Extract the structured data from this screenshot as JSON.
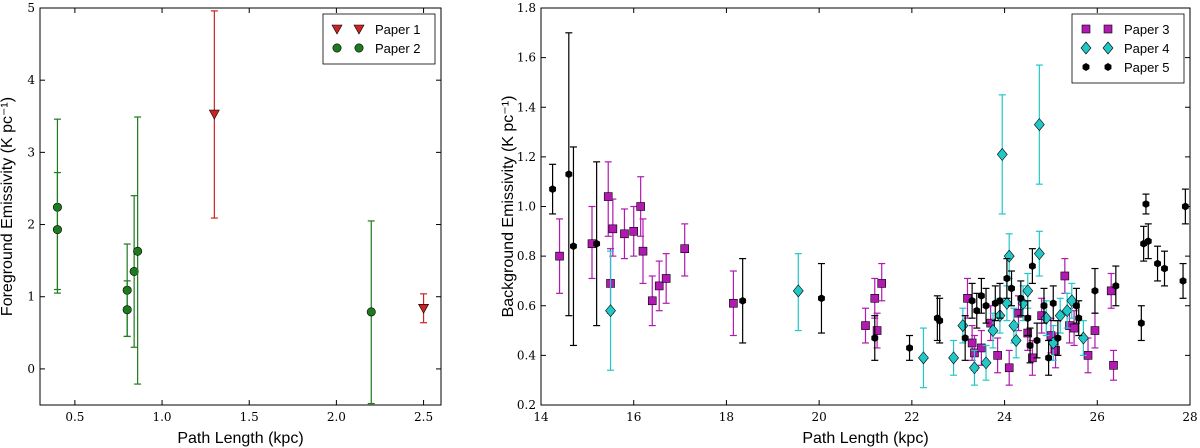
{
  "chart_data": [
    {
      "type": "scatter",
      "xlabel": "Path Length (kpc)",
      "ylabel": "Foreground Emissivity (K pc⁻¹)",
      "xlim": [
        0.3,
        2.6
      ],
      "ylim": [
        -0.5,
        5
      ],
      "xticks": [
        "0.5",
        "1.0",
        "1.5",
        "2.0",
        "2.5"
      ],
      "xtick_values": [
        0.5,
        1.0,
        1.5,
        2.0,
        2.5
      ],
      "yticks": [
        "0",
        "1",
        "2",
        "3",
        "4",
        "5"
      ],
      "ytick_values": [
        0,
        1,
        2,
        3,
        4,
        5
      ],
      "legend_position": "top-right",
      "series": [
        {
          "name": "Paper 1",
          "color": "#cc2222",
          "marker": "triangle-down",
          "points": [
            {
              "x": 1.3,
              "y": 3.53,
              "lo": 2.09,
              "hi": 4.96
            },
            {
              "x": 2.5,
              "y": 0.84,
              "lo": 0.64,
              "hi": 1.04
            }
          ]
        },
        {
          "name": "Paper 2",
          "color": "#1e7a1e",
          "marker": "circle",
          "points": [
            {
              "x": 0.4,
              "y": 2.24,
              "lo": 1.1,
              "hi": 3.46
            },
            {
              "x": 0.4,
              "y": 1.93,
              "lo": 1.05,
              "hi": 2.72
            },
            {
              "x": 0.8,
              "y": 1.09,
              "lo": 0.45,
              "hi": 1.73
            },
            {
              "x": 0.8,
              "y": 0.82,
              "lo": 0.45,
              "hi": 1.22
            },
            {
              "x": 0.84,
              "y": 1.35,
              "lo": 0.3,
              "hi": 2.4
            },
            {
              "x": 0.86,
              "y": 1.63,
              "lo": -0.21,
              "hi": 3.49
            },
            {
              "x": 2.2,
              "y": 0.79,
              "lo": -0.48,
              "hi": 2.05
            }
          ]
        }
      ]
    },
    {
      "type": "scatter",
      "xlabel": "Path Length (kpc)",
      "ylabel": "Background Emissivity (K pc⁻¹)",
      "xlim": [
        14,
        28
      ],
      "ylim": [
        0.2,
        1.8
      ],
      "xticks": [
        "14",
        "16",
        "18",
        "20",
        "22",
        "24",
        "26",
        "28"
      ],
      "xtick_values": [
        14,
        16,
        18,
        20,
        22,
        24,
        26,
        28
      ],
      "yticks": [
        "0.2",
        "0.4",
        "0.6",
        "0.8",
        "1.0",
        "1.2",
        "1.4",
        "1.6",
        "1.8"
      ],
      "ytick_values": [
        0.2,
        0.4,
        0.6,
        0.8,
        1.0,
        1.2,
        1.4,
        1.6,
        1.8
      ],
      "legend_position": "top-right",
      "series": [
        {
          "name": "Paper 3",
          "color": "#b01ab0",
          "marker": "square",
          "points": [
            {
              "x": 14.4,
              "y": 0.8,
              "lo": 0.65,
              "hi": 0.95
            },
            {
              "x": 15.1,
              "y": 0.85,
              "lo": 0.71,
              "hi": 1.0
            },
            {
              "x": 15.45,
              "y": 1.04,
              "lo": 0.88,
              "hi": 1.18
            },
            {
              "x": 15.5,
              "y": 0.69,
              "lo": 0.57,
              "hi": 0.83
            },
            {
              "x": 15.55,
              "y": 0.91,
              "lo": 0.8,
              "hi": 1.03
            },
            {
              "x": 15.8,
              "y": 0.89,
              "lo": 0.79,
              "hi": 0.99
            },
            {
              "x": 16.0,
              "y": 0.9,
              "lo": 0.8,
              "hi": 1.0
            },
            {
              "x": 16.15,
              "y": 1.0,
              "lo": 0.88,
              "hi": 1.12
            },
            {
              "x": 16.2,
              "y": 0.82,
              "lo": 0.69,
              "hi": 0.95
            },
            {
              "x": 16.4,
              "y": 0.62,
              "lo": 0.52,
              "hi": 0.72
            },
            {
              "x": 16.55,
              "y": 0.68,
              "lo": 0.58,
              "hi": 0.78
            },
            {
              "x": 16.7,
              "y": 0.71,
              "lo": 0.61,
              "hi": 0.81
            },
            {
              "x": 17.1,
              "y": 0.83,
              "lo": 0.72,
              "hi": 0.93
            },
            {
              "x": 18.15,
              "y": 0.61,
              "lo": 0.48,
              "hi": 0.74
            },
            {
              "x": 21.0,
              "y": 0.52,
              "lo": 0.45,
              "hi": 0.59
            },
            {
              "x": 21.2,
              "y": 0.63,
              "lo": 0.55,
              "hi": 0.71
            },
            {
              "x": 21.25,
              "y": 0.5,
              "lo": 0.43,
              "hi": 0.57
            },
            {
              "x": 21.35,
              "y": 0.69,
              "lo": 0.62,
              "hi": 0.77
            },
            {
              "x": 23.2,
              "y": 0.63,
              "lo": 0.55,
              "hi": 0.71
            },
            {
              "x": 23.3,
              "y": 0.45,
              "lo": 0.38,
              "hi": 0.52
            },
            {
              "x": 23.35,
              "y": 0.41,
              "lo": 0.34,
              "hi": 0.48
            },
            {
              "x": 23.5,
              "y": 0.43,
              "lo": 0.36,
              "hi": 0.5
            },
            {
              "x": 23.7,
              "y": 0.53,
              "lo": 0.46,
              "hi": 0.6
            },
            {
              "x": 23.85,
              "y": 0.4,
              "lo": 0.33,
              "hi": 0.47
            },
            {
              "x": 24.1,
              "y": 0.35,
              "lo": 0.28,
              "hi": 0.42
            },
            {
              "x": 24.3,
              "y": 0.57,
              "lo": 0.5,
              "hi": 0.64
            },
            {
              "x": 24.5,
              "y": 0.49,
              "lo": 0.42,
              "hi": 0.56
            },
            {
              "x": 24.6,
              "y": 0.39,
              "lo": 0.32,
              "hi": 0.46
            },
            {
              "x": 24.8,
              "y": 0.56,
              "lo": 0.49,
              "hi": 0.63
            },
            {
              "x": 25.0,
              "y": 0.48,
              "lo": 0.41,
              "hi": 0.55
            },
            {
              "x": 25.1,
              "y": 0.42,
              "lo": 0.35,
              "hi": 0.49
            },
            {
              "x": 25.3,
              "y": 0.72,
              "lo": 0.65,
              "hi": 0.79
            },
            {
              "x": 25.4,
              "y": 0.52,
              "lo": 0.45,
              "hi": 0.59
            },
            {
              "x": 25.5,
              "y": 0.51,
              "lo": 0.44,
              "hi": 0.58
            },
            {
              "x": 25.8,
              "y": 0.4,
              "lo": 0.33,
              "hi": 0.47
            },
            {
              "x": 25.95,
              "y": 0.5,
              "lo": 0.43,
              "hi": 0.57
            },
            {
              "x": 26.3,
              "y": 0.66,
              "lo": 0.59,
              "hi": 0.73
            },
            {
              "x": 26.35,
              "y": 0.36,
              "lo": 0.3,
              "hi": 0.42
            }
          ]
        },
        {
          "name": "Paper 4",
          "color": "#22c8c8",
          "marker": "diamond",
          "points": [
            {
              "x": 15.5,
              "y": 0.58,
              "lo": 0.34,
              "hi": 0.82
            },
            {
              "x": 19.55,
              "y": 0.66,
              "lo": 0.5,
              "hi": 0.81
            },
            {
              "x": 22.25,
              "y": 0.39,
              "lo": 0.27,
              "hi": 0.51
            },
            {
              "x": 22.9,
              "y": 0.39,
              "lo": 0.32,
              "hi": 0.46
            },
            {
              "x": 23.1,
              "y": 0.52,
              "lo": 0.45,
              "hi": 0.59
            },
            {
              "x": 23.35,
              "y": 0.35,
              "lo": 0.28,
              "hi": 0.42
            },
            {
              "x": 23.6,
              "y": 0.37,
              "lo": 0.3,
              "hi": 0.44
            },
            {
              "x": 23.75,
              "y": 0.5,
              "lo": 0.43,
              "hi": 0.57
            },
            {
              "x": 23.9,
              "y": 0.56,
              "lo": 0.49,
              "hi": 0.63
            },
            {
              "x": 23.95,
              "y": 1.21,
              "lo": 0.97,
              "hi": 1.45
            },
            {
              "x": 24.05,
              "y": 0.61,
              "lo": 0.54,
              "hi": 0.68
            },
            {
              "x": 24.1,
              "y": 0.8,
              "lo": 0.71,
              "hi": 0.89
            },
            {
              "x": 24.2,
              "y": 0.52,
              "lo": 0.45,
              "hi": 0.59
            },
            {
              "x": 24.25,
              "y": 0.46,
              "lo": 0.39,
              "hi": 0.53
            },
            {
              "x": 24.4,
              "y": 0.61,
              "lo": 0.54,
              "hi": 0.68
            },
            {
              "x": 24.5,
              "y": 0.66,
              "lo": 0.59,
              "hi": 0.73
            },
            {
              "x": 24.75,
              "y": 0.81,
              "lo": 0.72,
              "hi": 0.9
            },
            {
              "x": 24.75,
              "y": 1.33,
              "lo": 1.09,
              "hi": 1.57
            },
            {
              "x": 24.9,
              "y": 0.55,
              "lo": 0.48,
              "hi": 0.62
            },
            {
              "x": 25.05,
              "y": 0.45,
              "lo": 0.38,
              "hi": 0.52
            },
            {
              "x": 25.2,
              "y": 0.56,
              "lo": 0.49,
              "hi": 0.63
            },
            {
              "x": 25.35,
              "y": 0.58,
              "lo": 0.51,
              "hi": 0.65
            },
            {
              "x": 25.45,
              "y": 0.62,
              "lo": 0.55,
              "hi": 0.69
            },
            {
              "x": 25.7,
              "y": 0.47,
              "lo": 0.4,
              "hi": 0.54
            }
          ]
        },
        {
          "name": "Paper 5",
          "color": "#000000",
          "marker": "hexagon",
          "points": [
            {
              "x": 14.25,
              "y": 1.07,
              "lo": 0.97,
              "hi": 1.17
            },
            {
              "x": 14.6,
              "y": 1.13,
              "lo": 0.56,
              "hi": 1.7
            },
            {
              "x": 14.7,
              "y": 0.84,
              "lo": 0.44,
              "hi": 1.24
            },
            {
              "x": 15.2,
              "y": 0.85,
              "lo": 0.52,
              "hi": 1.18
            },
            {
              "x": 18.35,
              "y": 0.62,
              "lo": 0.45,
              "hi": 0.79
            },
            {
              "x": 20.05,
              "y": 0.63,
              "lo": 0.49,
              "hi": 0.77
            },
            {
              "x": 21.2,
              "y": 0.47,
              "lo": 0.38,
              "hi": 0.56
            },
            {
              "x": 21.95,
              "y": 0.43,
              "lo": 0.38,
              "hi": 0.48
            },
            {
              "x": 22.55,
              "y": 0.55,
              "lo": 0.46,
              "hi": 0.64
            },
            {
              "x": 22.6,
              "y": 0.54,
              "lo": 0.45,
              "hi": 0.63
            },
            {
              "x": 23.15,
              "y": 0.47,
              "lo": 0.38,
              "hi": 0.56
            },
            {
              "x": 23.3,
              "y": 0.62,
              "lo": 0.55,
              "hi": 0.69
            },
            {
              "x": 23.4,
              "y": 0.58,
              "lo": 0.51,
              "hi": 0.65
            },
            {
              "x": 23.5,
              "y": 0.64,
              "lo": 0.57,
              "hi": 0.71
            },
            {
              "x": 23.6,
              "y": 0.6,
              "lo": 0.53,
              "hi": 0.67
            },
            {
              "x": 23.8,
              "y": 0.61,
              "lo": 0.54,
              "hi": 0.68
            },
            {
              "x": 23.9,
              "y": 0.62,
              "lo": 0.55,
              "hi": 0.69
            },
            {
              "x": 24.05,
              "y": 0.71,
              "lo": 0.63,
              "hi": 0.79
            },
            {
              "x": 24.15,
              "y": 0.67,
              "lo": 0.6,
              "hi": 0.74
            },
            {
              "x": 24.35,
              "y": 0.63,
              "lo": 0.56,
              "hi": 0.7
            },
            {
              "x": 24.5,
              "y": 0.55,
              "lo": 0.48,
              "hi": 0.62
            },
            {
              "x": 24.55,
              "y": 0.44,
              "lo": 0.37,
              "hi": 0.51
            },
            {
              "x": 24.6,
              "y": 0.76,
              "lo": 0.69,
              "hi": 0.83
            },
            {
              "x": 24.7,
              "y": 0.46,
              "lo": 0.39,
              "hi": 0.53
            },
            {
              "x": 24.85,
              "y": 0.6,
              "lo": 0.53,
              "hi": 0.67
            },
            {
              "x": 24.95,
              "y": 0.39,
              "lo": 0.32,
              "hi": 0.46
            },
            {
              "x": 25.05,
              "y": 0.61,
              "lo": 0.54,
              "hi": 0.68
            },
            {
              "x": 25.15,
              "y": 0.47,
              "lo": 0.4,
              "hi": 0.54
            },
            {
              "x": 25.55,
              "y": 0.6,
              "lo": 0.53,
              "hi": 0.67
            },
            {
              "x": 25.6,
              "y": 0.55,
              "lo": 0.48,
              "hi": 0.62
            },
            {
              "x": 25.95,
              "y": 0.66,
              "lo": 0.57,
              "hi": 0.75
            },
            {
              "x": 26.4,
              "y": 0.68,
              "lo": 0.6,
              "hi": 0.76
            },
            {
              "x": 26.95,
              "y": 0.53,
              "lo": 0.46,
              "hi": 0.6
            },
            {
              "x": 27.0,
              "y": 0.85,
              "lo": 0.78,
              "hi": 0.92
            },
            {
              "x": 27.05,
              "y": 1.01,
              "lo": 0.97,
              "hi": 1.05
            },
            {
              "x": 27.1,
              "y": 0.86,
              "lo": 0.79,
              "hi": 0.93
            },
            {
              "x": 27.3,
              "y": 0.77,
              "lo": 0.7,
              "hi": 0.84
            },
            {
              "x": 27.45,
              "y": 0.75,
              "lo": 0.68,
              "hi": 0.82
            },
            {
              "x": 27.85,
              "y": 0.7,
              "lo": 0.63,
              "hi": 0.77
            },
            {
              "x": 27.9,
              "y": 1.0,
              "lo": 0.93,
              "hi": 1.07
            }
          ]
        }
      ]
    }
  ]
}
